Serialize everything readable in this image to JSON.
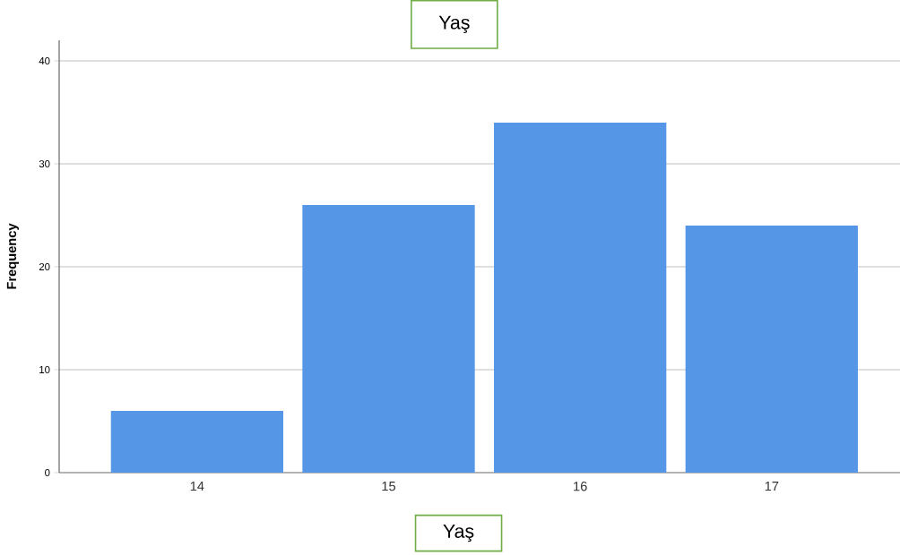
{
  "chart_data": {
    "type": "bar",
    "title": "Yaş",
    "xlabel": "Yaş",
    "ylabel": "Frequency",
    "categories": [
      "14",
      "15",
      "16",
      "17"
    ],
    "values": [
      6,
      26,
      34,
      24
    ],
    "color": "#5596e6",
    "ylim": [
      0,
      42
    ],
    "yticks": [
      0,
      10,
      20,
      30,
      40
    ],
    "grid": "y"
  }
}
